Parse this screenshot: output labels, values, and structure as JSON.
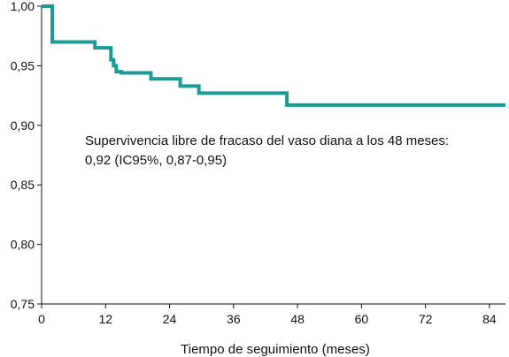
{
  "chart_data": {
    "type": "line",
    "title": "",
    "xlabel": "Tiempo de seguimiento (meses)",
    "ylabel": "",
    "xlim": [
      0,
      87
    ],
    "ylim": [
      0.75,
      1.0
    ],
    "x_ticks": [
      0,
      12,
      24,
      36,
      48,
      60,
      72,
      84
    ],
    "x_tick_labels": [
      "0",
      "12",
      "24",
      "36",
      "48",
      "60",
      "72",
      "84"
    ],
    "y_ticks": [
      0.75,
      0.8,
      0.85,
      0.9,
      0.95,
      1.0
    ],
    "y_tick_labels": [
      "0,75",
      "0,80",
      "0,85",
      "0,90",
      "0,95",
      "1,00"
    ],
    "grid": false,
    "line_color": "#1a9b93",
    "series": [
      {
        "step": true,
        "x": [
          0,
          2,
          10,
          13,
          13.5,
          14,
          15,
          20.5,
          26,
          29.5,
          46,
          87
        ],
        "y": [
          1.0,
          0.97,
          0.965,
          0.955,
          0.95,
          0.945,
          0.944,
          0.939,
          0.933,
          0.927,
          0.917,
          0.917
        ]
      }
    ],
    "annotations": [
      "Supervivencia libre de fracaso del vaso diana a los 48 meses:",
      "0,92 (IC95%, 0,87-0,95)"
    ]
  }
}
